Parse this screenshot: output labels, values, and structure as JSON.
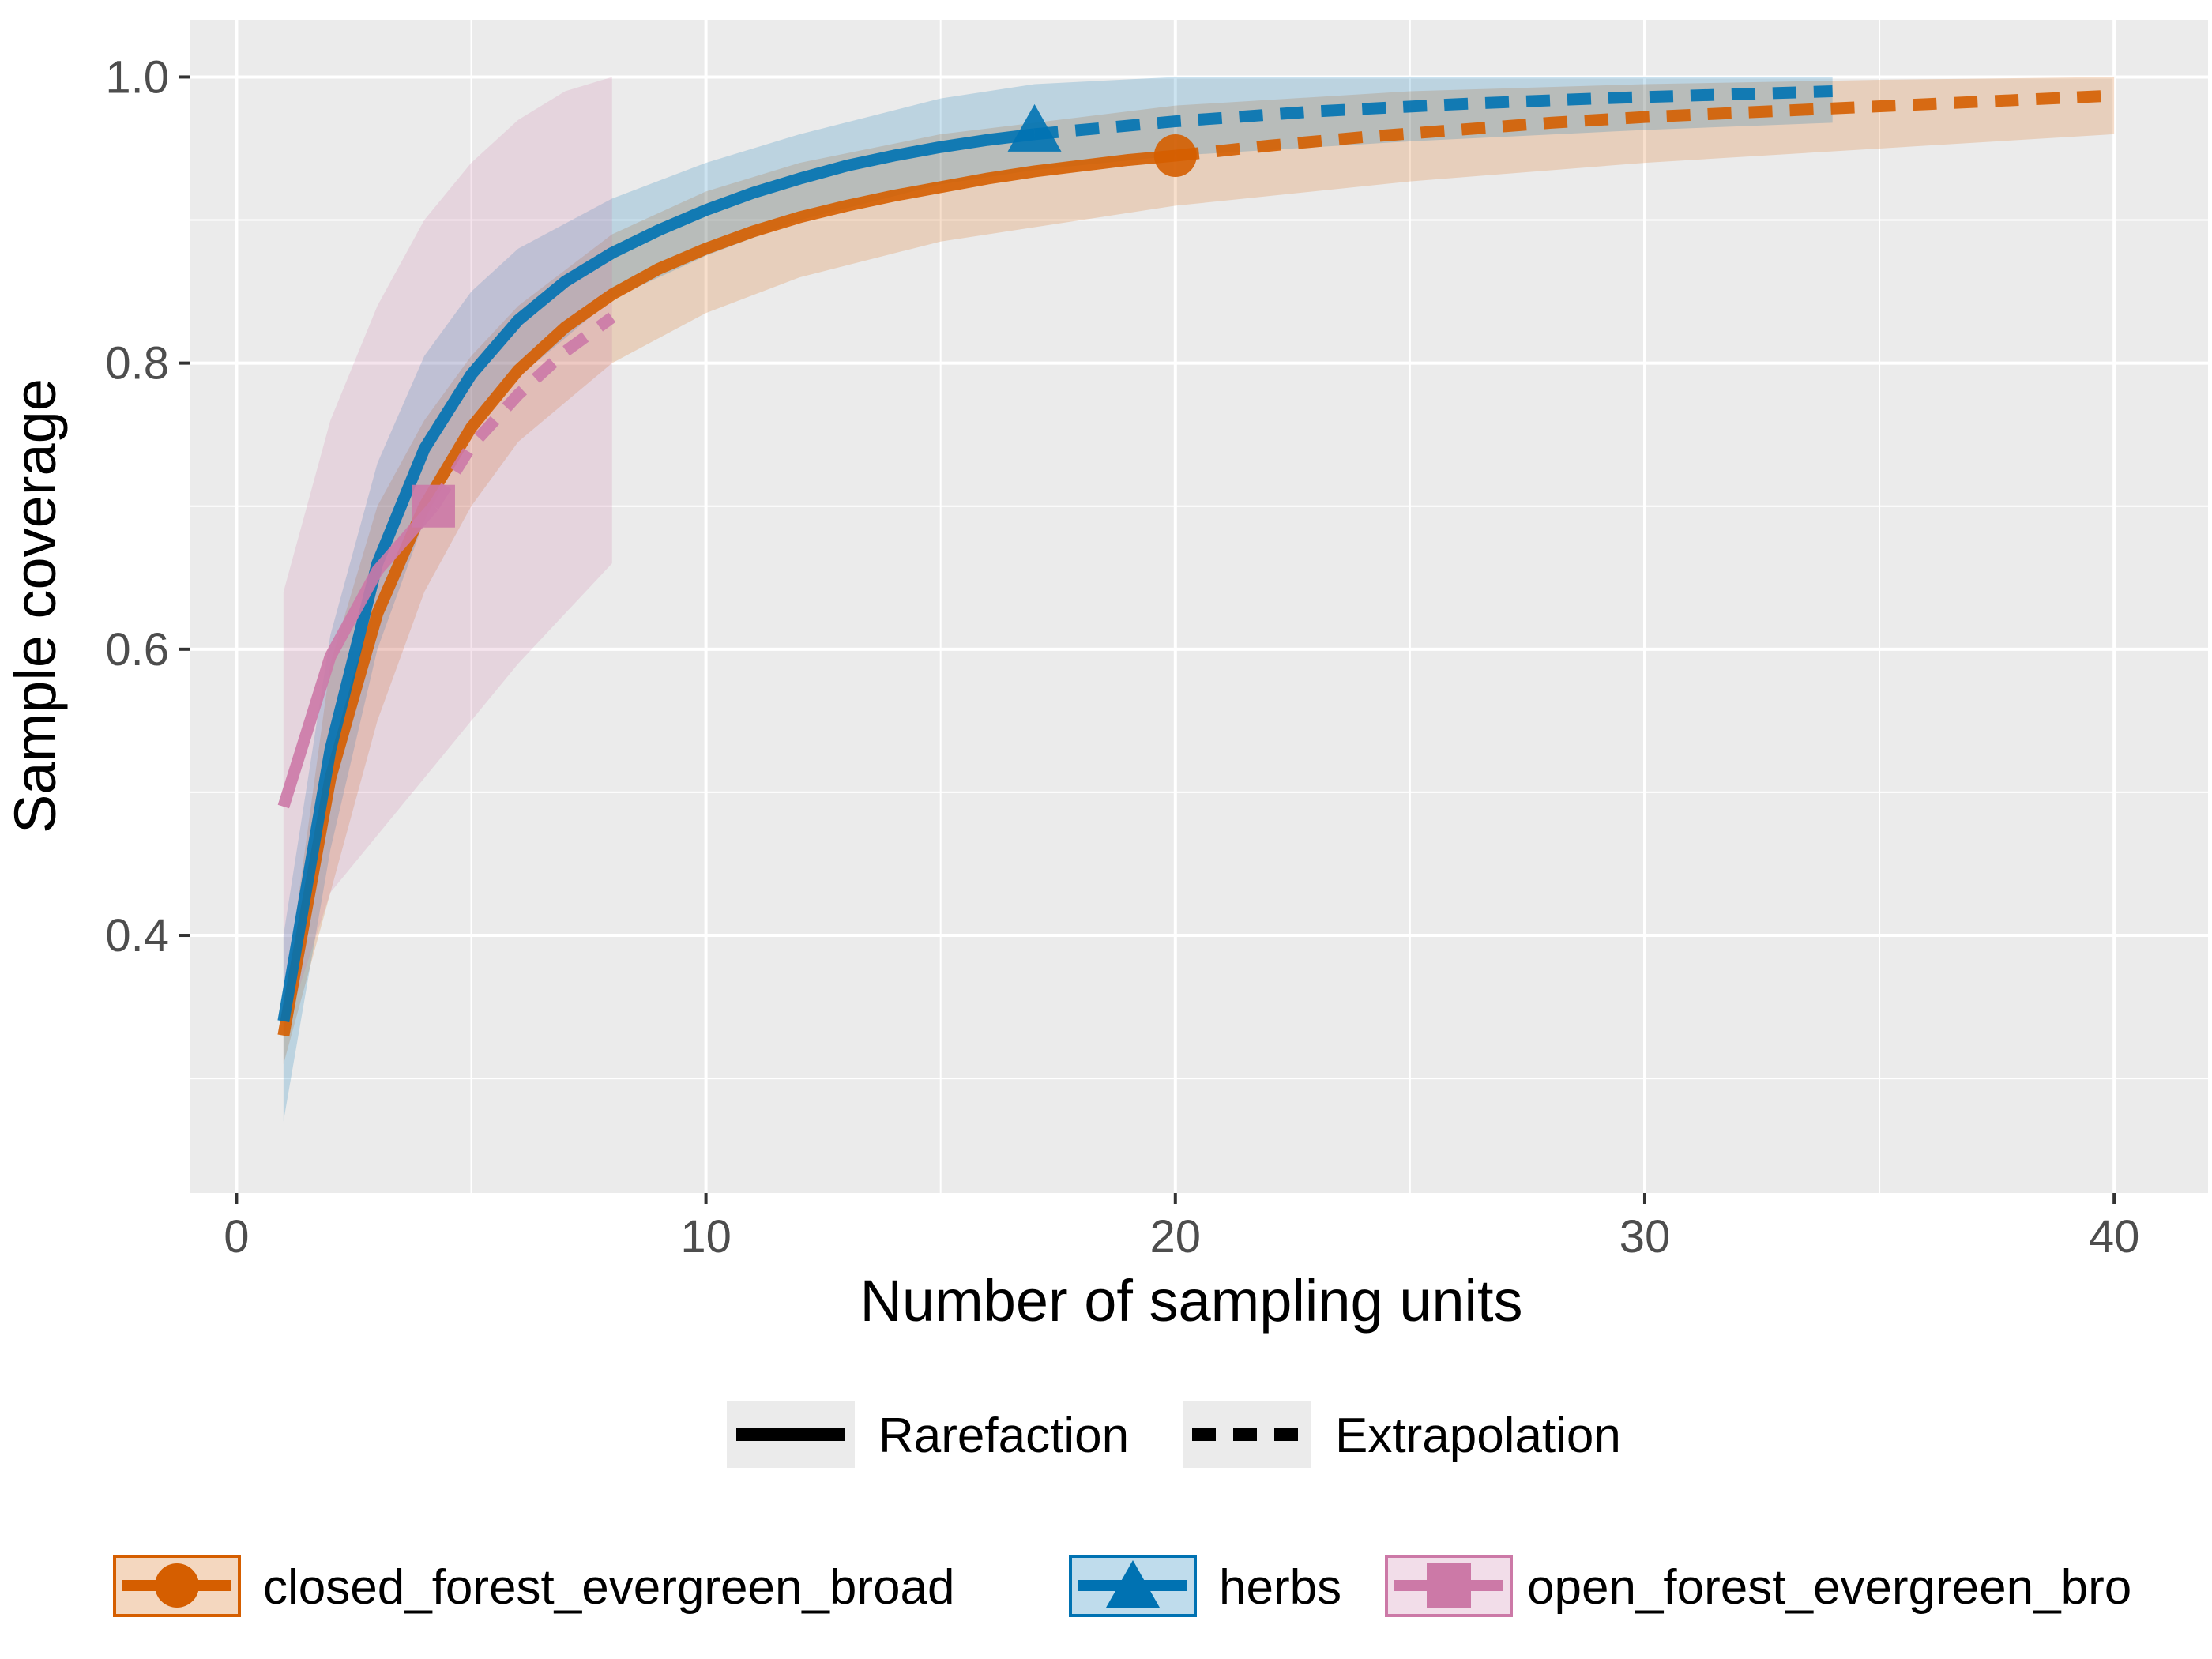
{
  "chart_data": {
    "type": "line",
    "xlabel": "Number of sampling units",
    "ylabel": "Sample coverage",
    "xlim": [
      -1,
      42
    ],
    "ylim": [
      0.22,
      1.04
    ],
    "x_ticks": [
      0,
      10,
      20,
      30,
      40
    ],
    "y_ticks": [
      0.4,
      0.6,
      0.8,
      1.0
    ],
    "x_tick_labels": [
      "0",
      "10",
      "20",
      "30",
      "40"
    ],
    "y_tick_labels": [
      "0.4",
      "0.6",
      "0.8",
      "1.0"
    ],
    "grid": true,
    "panel_color": "#ebebeb",
    "linetype_legend": {
      "position": "bottom",
      "items": [
        {
          "label": "Rarefaction",
          "dash": "solid"
        },
        {
          "label": "Extrapolation",
          "dash": "dashed"
        }
      ]
    },
    "series_legend_position": "bottom",
    "series": [
      {
        "name": "closed_forest_evergreen_broad",
        "color": "#d55e00",
        "marker": "circle",
        "observed": {
          "x": 20,
          "y": 0.945
        },
        "rarefaction": {
          "x": [
            1,
            2,
            3,
            4,
            5,
            6,
            7,
            8,
            9,
            10,
            11,
            12,
            13,
            14,
            15,
            16,
            17,
            18,
            19,
            20
          ],
          "y": [
            0.33,
            0.51,
            0.625,
            0.7,
            0.755,
            0.795,
            0.825,
            0.848,
            0.866,
            0.88,
            0.892,
            0.902,
            0.91,
            0.917,
            0.923,
            0.929,
            0.934,
            0.938,
            0.942,
            0.945
          ]
        },
        "extrapolation": {
          "x": [
            20,
            22,
            24,
            26,
            28,
            30,
            32,
            34,
            36,
            38,
            40
          ],
          "y": [
            0.945,
            0.952,
            0.958,
            0.963,
            0.968,
            0.972,
            0.975,
            0.978,
            0.981,
            0.984,
            0.987
          ]
        },
        "ci": {
          "x": [
            1,
            2,
            3,
            4,
            5,
            6,
            8,
            10,
            12,
            15,
            20,
            25,
            30,
            35,
            40
          ],
          "lower": [
            0.31,
            0.43,
            0.55,
            0.64,
            0.7,
            0.745,
            0.8,
            0.835,
            0.86,
            0.885,
            0.91,
            0.927,
            0.94,
            0.95,
            0.96
          ],
          "upper": [
            0.35,
            0.59,
            0.7,
            0.76,
            0.805,
            0.84,
            0.89,
            0.92,
            0.94,
            0.96,
            0.98,
            0.99,
            0.995,
            0.998,
            1.0
          ]
        }
      },
      {
        "name": "herbs",
        "color": "#0072b2",
        "marker": "triangle",
        "observed": {
          "x": 17,
          "y": 0.96
        },
        "rarefaction": {
          "x": [
            1,
            2,
            3,
            4,
            5,
            6,
            7,
            8,
            9,
            10,
            11,
            12,
            13,
            14,
            15,
            16,
            17
          ],
          "y": [
            0.34,
            0.53,
            0.66,
            0.74,
            0.792,
            0.83,
            0.857,
            0.877,
            0.893,
            0.907,
            0.919,
            0.929,
            0.938,
            0.945,
            0.951,
            0.956,
            0.96
          ]
        },
        "extrapolation": {
          "x": [
            17,
            20,
            23,
            26,
            29,
            32,
            34
          ],
          "y": [
            0.96,
            0.969,
            0.976,
            0.981,
            0.985,
            0.988,
            0.99
          ]
        },
        "ci": {
          "x": [
            1,
            2,
            3,
            4,
            5,
            6,
            8,
            10,
            12,
            15,
            17,
            20,
            25,
            30,
            34
          ],
          "lower": [
            0.27,
            0.46,
            0.6,
            0.69,
            0.75,
            0.79,
            0.845,
            0.875,
            0.9,
            0.925,
            0.935,
            0.945,
            0.955,
            0.963,
            0.968
          ],
          "upper": [
            0.4,
            0.61,
            0.73,
            0.805,
            0.85,
            0.88,
            0.915,
            0.94,
            0.96,
            0.985,
            0.995,
            1.0,
            1.0,
            1.0,
            1.0
          ]
        }
      },
      {
        "name": "open_forest_evergreen_bro",
        "color": "#cc79a7",
        "marker": "square",
        "observed": {
          "x": 4.2,
          "y": 0.7
        },
        "rarefaction": {
          "x": [
            1,
            2,
            3,
            4.2
          ],
          "y": [
            0.49,
            0.595,
            0.655,
            0.7
          ]
        },
        "extrapolation": {
          "x": [
            4.2,
            5,
            6,
            7,
            8
          ],
          "y": [
            0.7,
            0.742,
            0.778,
            0.808,
            0.832
          ]
        },
        "ci": {
          "x": [
            1,
            2,
            3,
            4,
            5,
            6,
            7,
            8
          ],
          "lower": [
            0.33,
            0.43,
            0.47,
            0.51,
            0.55,
            0.59,
            0.625,
            0.66
          ],
          "upper": [
            0.64,
            0.76,
            0.84,
            0.9,
            0.94,
            0.97,
            0.99,
            1.0
          ]
        }
      }
    ]
  }
}
